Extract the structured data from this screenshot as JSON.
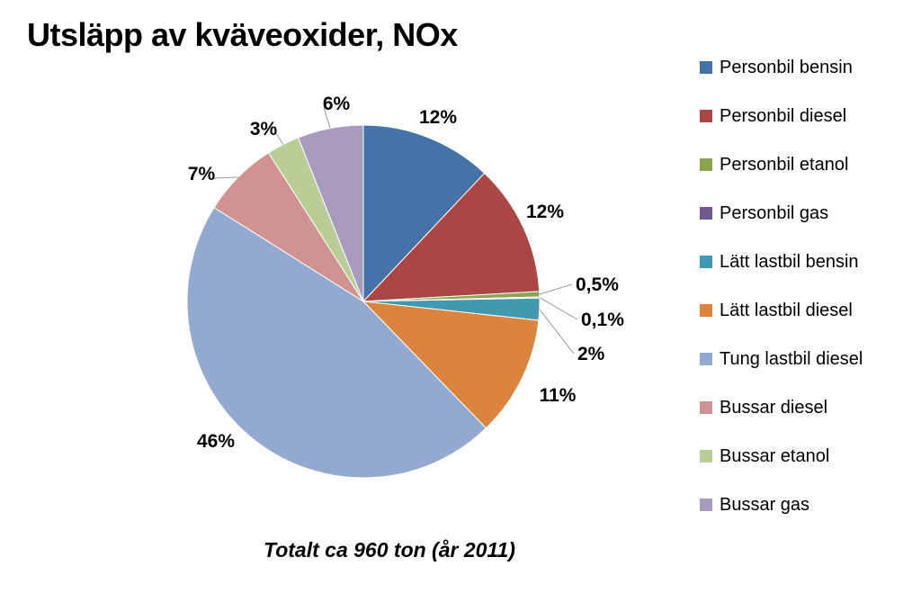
{
  "chart_data": {
    "type": "pie",
    "title": "Utsläpp av kväveoxider, NOx",
    "subtitle": "Totalt ca 960 ton (år 2011)",
    "legend_position": "right",
    "slices": [
      {
        "name": "Personbil bensin",
        "value": 12,
        "label": "12%",
        "color": "#4572A7"
      },
      {
        "name": "Personbil diesel",
        "value": 12,
        "label": "12%",
        "color": "#AA4643"
      },
      {
        "name": "Personbil etanol",
        "value": 0.5,
        "label": "0,5%",
        "color": "#89A54E"
      },
      {
        "name": "Personbil gas",
        "value": 0.1,
        "label": "0,1%",
        "color": "#71588F"
      },
      {
        "name": "Lätt lastbil bensin",
        "value": 2,
        "label": "2%",
        "color": "#4198AF"
      },
      {
        "name": "Lätt lastbil diesel",
        "value": 11,
        "label": "11%",
        "color": "#DB843D"
      },
      {
        "name": "Tung lastbil diesel",
        "value": 46,
        "label": "46%",
        "color": "#93A9CF"
      },
      {
        "name": "Bussar diesel",
        "value": 7,
        "label": "7%",
        "color": "#D19392"
      },
      {
        "name": "Bussar etanol",
        "value": 3,
        "label": "3%",
        "color": "#B9CD96"
      },
      {
        "name": "Bussar gas",
        "value": 6,
        "label": "6%",
        "color": "#A99BBD"
      }
    ]
  }
}
